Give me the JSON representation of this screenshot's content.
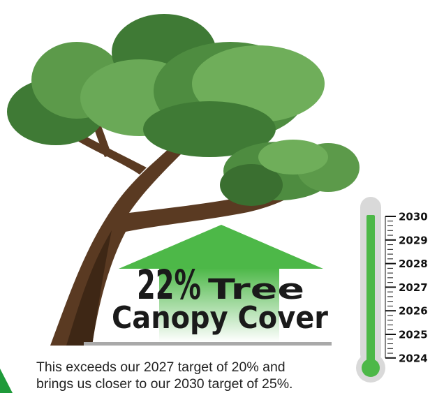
{
  "headline": {
    "percent": "22%",
    "line1": "Tree",
    "line2": "Canopy Cover"
  },
  "body": {
    "line1": "This exceeds our 2027 target of 20% and",
    "line2": "brings us closer to our 2030 target of 25%."
  },
  "thermometer": {
    "years": [
      "2030",
      "2029",
      "2028",
      "2027",
      "2026",
      "2025",
      "2024"
    ]
  }
}
